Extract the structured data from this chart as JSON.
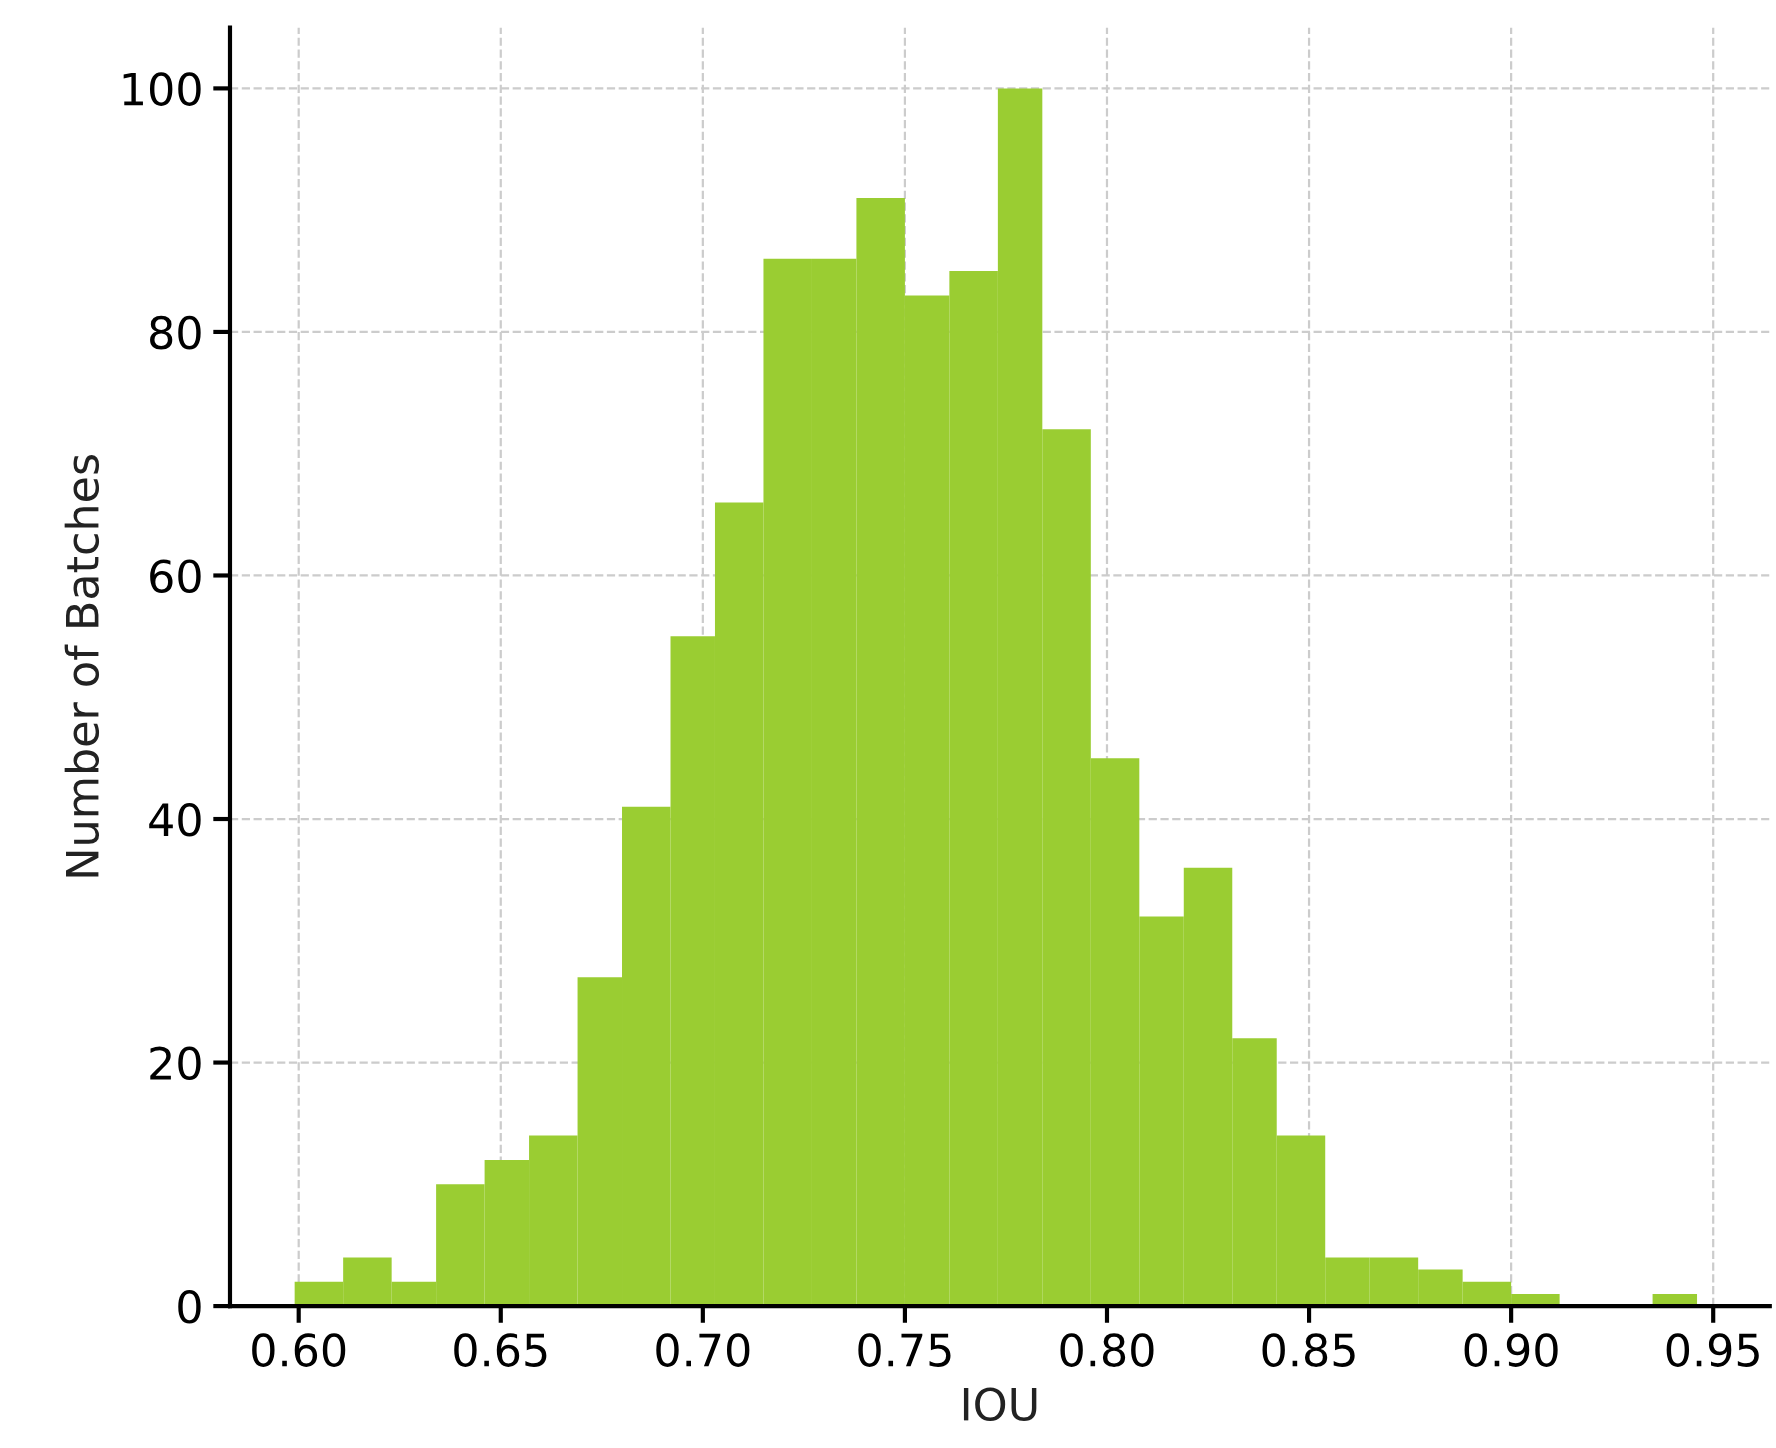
{
  "chart_data": {
    "type": "histogram",
    "xlabel": "IOU",
    "ylabel": "Number of Batches",
    "color": "#9acd32",
    "bins": [
      0.599,
      0.611,
      0.623,
      0.634,
      0.646,
      0.657,
      0.669,
      0.68,
      0.692,
      0.703,
      0.715,
      0.727,
      0.738,
      0.75,
      0.761,
      0.773,
      0.784,
      0.796,
      0.808,
      0.819,
      0.831,
      0.842,
      0.854,
      0.865,
      0.877,
      0.888,
      0.9,
      0.912,
      0.935,
      0.946
    ],
    "values": [
      2,
      4,
      2,
      10,
      12,
      14,
      27,
      41,
      55,
      66,
      86,
      86,
      91,
      83,
      85,
      100,
      72,
      45,
      32,
      36,
      22,
      14,
      4,
      4,
      3,
      2,
      1,
      0,
      1
    ],
    "xlim": [
      0.583,
      0.964
    ],
    "ylim": [
      0,
      105
    ],
    "xticks": [
      {
        "value": 0.6,
        "label": "0.60"
      },
      {
        "value": 0.65,
        "label": "0.65"
      },
      {
        "value": 0.7,
        "label": "0.70"
      },
      {
        "value": 0.75,
        "label": "0.75"
      },
      {
        "value": 0.8,
        "label": "0.80"
      },
      {
        "value": 0.85,
        "label": "0.85"
      },
      {
        "value": 0.9,
        "label": "0.90"
      },
      {
        "value": 0.95,
        "label": "0.95"
      }
    ],
    "yticks": [
      0,
      20,
      40,
      60,
      80,
      100
    ],
    "grid": true
  }
}
